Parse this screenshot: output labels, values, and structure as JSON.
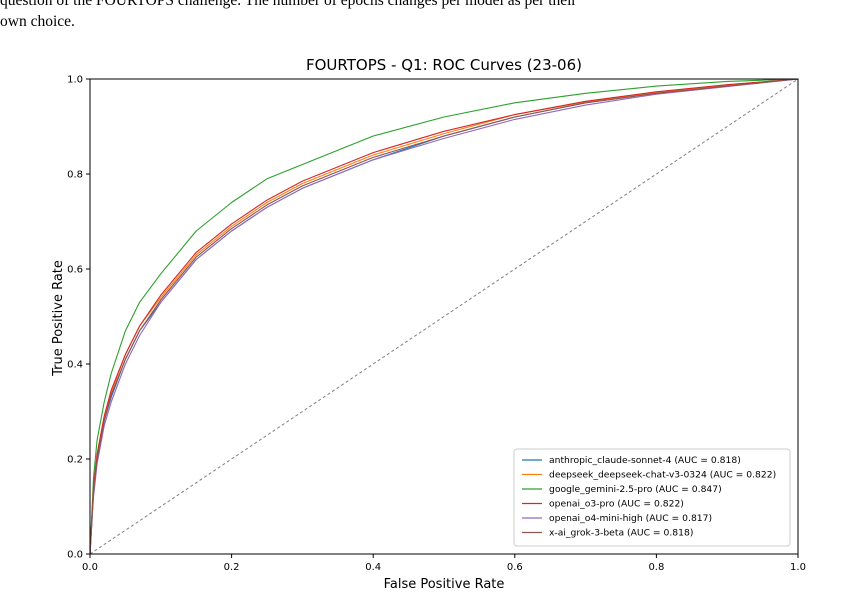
{
  "caption": {
    "line1": "question of the FOURTOPS challenge. The number of epochs changes per model as per their",
    "line2": "own choice."
  },
  "chart_data": {
    "type": "line",
    "title": "FOURTOPS - Q1: ROC Curves (23-06)",
    "xlabel": "False Positive Rate",
    "ylabel": "True Positive Rate",
    "xlim": [
      0,
      1
    ],
    "ylim": [
      0,
      1
    ],
    "xticks": [
      "0.0",
      "0.2",
      "0.4",
      "0.6",
      "0.8",
      "1.0"
    ],
    "yticks": [
      "0.0",
      "0.2",
      "0.4",
      "0.6",
      "0.8",
      "1.0"
    ],
    "grid": false,
    "legend_position": "lower-right",
    "diagonal": {
      "style": "dashed",
      "color": "#808080"
    },
    "series": [
      {
        "name": "anthropic_claude-sonnet-4 (AUC = 0.818)",
        "color": "#1f77b4",
        "x": [
          0,
          0.005,
          0.01,
          0.02,
          0.03,
          0.05,
          0.07,
          0.1,
          0.15,
          0.2,
          0.25,
          0.3,
          0.4,
          0.5,
          0.6,
          0.7,
          0.8,
          0.9,
          1.0
        ],
        "y": [
          0,
          0.13,
          0.2,
          0.28,
          0.33,
          0.41,
          0.47,
          0.53,
          0.62,
          0.68,
          0.73,
          0.77,
          0.83,
          0.88,
          0.92,
          0.95,
          0.97,
          0.985,
          1.0
        ]
      },
      {
        "name": "deepseek_deepseek-chat-v3-0324 (AUC = 0.822)",
        "color": "#ff7f0e",
        "x": [
          0,
          0.005,
          0.01,
          0.02,
          0.03,
          0.05,
          0.07,
          0.1,
          0.15,
          0.2,
          0.25,
          0.3,
          0.4,
          0.5,
          0.6,
          0.7,
          0.8,
          0.9,
          1.0
        ],
        "y": [
          0,
          0.14,
          0.21,
          0.29,
          0.34,
          0.42,
          0.48,
          0.54,
          0.63,
          0.69,
          0.74,
          0.78,
          0.84,
          0.885,
          0.925,
          0.952,
          0.972,
          0.987,
          1.0
        ]
      },
      {
        "name": "google_gemini-2.5-pro (AUC = 0.847)",
        "color": "#2ca02c",
        "x": [
          0,
          0.005,
          0.01,
          0.02,
          0.03,
          0.05,
          0.07,
          0.1,
          0.15,
          0.2,
          0.25,
          0.3,
          0.4,
          0.5,
          0.6,
          0.7,
          0.8,
          0.9,
          1.0
        ],
        "y": [
          0,
          0.16,
          0.24,
          0.32,
          0.38,
          0.47,
          0.53,
          0.59,
          0.68,
          0.74,
          0.79,
          0.82,
          0.88,
          0.92,
          0.95,
          0.97,
          0.985,
          0.995,
          1.0
        ]
      },
      {
        "name": "openai_o3-pro (AUC = 0.822)",
        "color": "#d62728",
        "x": [
          0,
          0.005,
          0.01,
          0.02,
          0.03,
          0.05,
          0.07,
          0.1,
          0.15,
          0.2,
          0.25,
          0.3,
          0.4,
          0.5,
          0.6,
          0.7,
          0.8,
          0.9,
          1.0
        ],
        "y": [
          0,
          0.14,
          0.21,
          0.29,
          0.345,
          0.42,
          0.48,
          0.545,
          0.635,
          0.695,
          0.745,
          0.785,
          0.845,
          0.89,
          0.925,
          0.953,
          0.973,
          0.988,
          1.0
        ]
      },
      {
        "name": "openai_o4-mini-high (AUC = 0.817)",
        "color": "#9467bd",
        "x": [
          0,
          0.005,
          0.01,
          0.02,
          0.03,
          0.05,
          0.07,
          0.1,
          0.15,
          0.2,
          0.25,
          0.3,
          0.4,
          0.5,
          0.6,
          0.7,
          0.8,
          0.9,
          1.0
        ],
        "y": [
          0,
          0.12,
          0.19,
          0.27,
          0.32,
          0.4,
          0.46,
          0.53,
          0.62,
          0.68,
          0.73,
          0.77,
          0.83,
          0.875,
          0.915,
          0.945,
          0.968,
          0.984,
          1.0
        ]
      },
      {
        "name": "x-ai_grok-3-beta (AUC = 0.818)",
        "color": "#8c564b",
        "x": [
          0,
          0.005,
          0.01,
          0.02,
          0.03,
          0.05,
          0.07,
          0.1,
          0.15,
          0.2,
          0.25,
          0.3,
          0.4,
          0.5,
          0.6,
          0.7,
          0.8,
          0.9,
          1.0
        ],
        "y": [
          0,
          0.13,
          0.2,
          0.28,
          0.335,
          0.41,
          0.47,
          0.535,
          0.625,
          0.685,
          0.735,
          0.775,
          0.835,
          0.88,
          0.92,
          0.95,
          0.97,
          0.985,
          1.0
        ]
      }
    ]
  }
}
